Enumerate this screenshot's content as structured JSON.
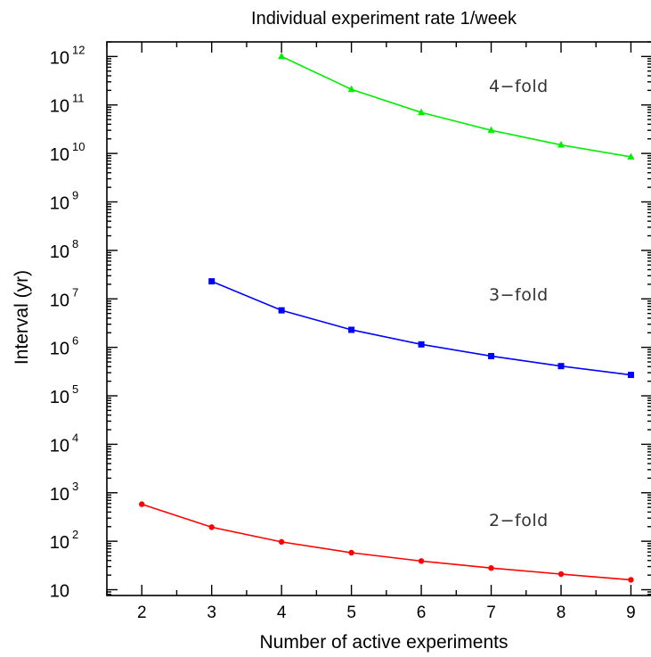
{
  "chart_data": {
    "type": "line",
    "title": "Individual experiment rate 1/week",
    "xlabel": "Number of active experiments",
    "ylabel": "Interval (yr)",
    "y_scale": "log",
    "xlim": [
      1.5,
      9.3
    ],
    "ylim": [
      7.6,
      2000000000000.0
    ],
    "x_ticks": [
      "2",
      "3",
      "4",
      "5",
      "6",
      "7",
      "8",
      "9"
    ],
    "y_ticks": [
      {
        "base": "10",
        "exp": "",
        "value": 10
      },
      {
        "base": "10",
        "exp": "2",
        "value": 100
      },
      {
        "base": "10",
        "exp": "3",
        "value": 1000
      },
      {
        "base": "10",
        "exp": "4",
        "value": 10000
      },
      {
        "base": "10",
        "exp": "5",
        "value": 100000
      },
      {
        "base": "10",
        "exp": "6",
        "value": 1000000
      },
      {
        "base": "10",
        "exp": "7",
        "value": 10000000
      },
      {
        "base": "10",
        "exp": "8",
        "value": 100000000
      },
      {
        "base": "10",
        "exp": "9",
        "value": 1000000000
      },
      {
        "base": "10",
        "exp": "10",
        "value": 10000000000
      },
      {
        "base": "10",
        "exp": "11",
        "value": 100000000000
      },
      {
        "base": "10",
        "exp": "12",
        "value": 1000000000000
      }
    ],
    "grid": false,
    "series": [
      {
        "name": "2−fold",
        "color": "#ff0000",
        "marker": "circle",
        "x": [
          2,
          3,
          4,
          5,
          6,
          7,
          8,
          9
        ],
        "y": [
          580,
          195,
          97,
          58,
          39,
          28,
          21,
          16
        ]
      },
      {
        "name": "3−fold",
        "color": "#0000ff",
        "marker": "square",
        "x": [
          3,
          4,
          5,
          6,
          7,
          8,
          9
        ],
        "y": [
          23000000,
          5800000,
          2300000,
          1150000,
          660000,
          410000,
          270000
        ]
      },
      {
        "name": "4−fold",
        "color": "#00ee00",
        "marker": "triangle",
        "x": [
          4,
          5,
          6,
          7,
          8,
          9
        ],
        "y": [
          1000000000000,
          210000000000,
          70000000000,
          30000000000,
          15000000000,
          8500000000
        ]
      }
    ]
  }
}
